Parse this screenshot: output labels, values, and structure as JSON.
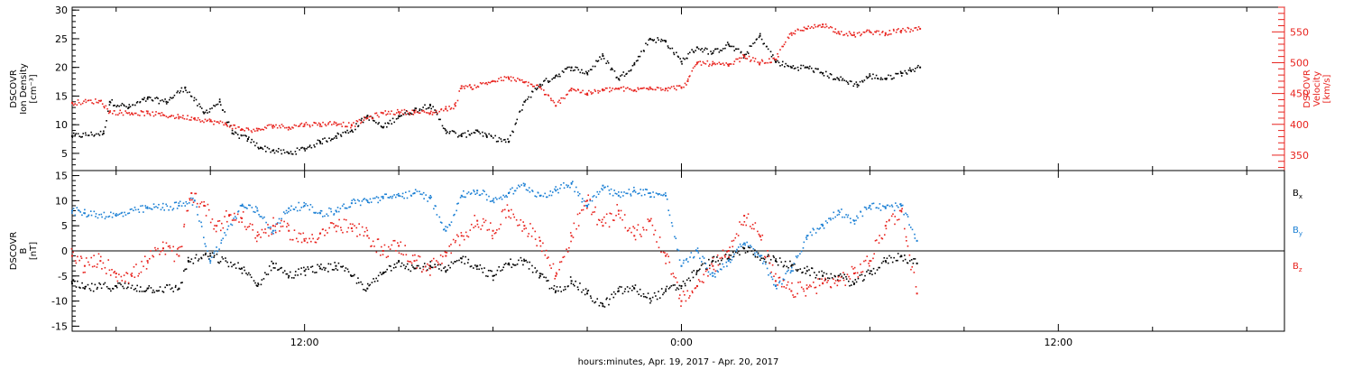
{
  "chart_data": [
    {
      "type": "scatter",
      "xlabel": "hours:minutes, Apr. 19, 2017 - Apr. 20, 2017",
      "x_ticks": [
        "12:00",
        "0:00",
        "12:00"
      ],
      "x_tick_hours": [
        12,
        24,
        36
      ],
      "xlim_hours": [
        4.6,
        43.2
      ],
      "y_left": {
        "label_lines": [
          "DSCOVR",
          "Ion Density",
          "[cm⁻³]"
        ],
        "ylim": [
          2,
          30.5
        ],
        "ticks": [
          5,
          10,
          15,
          20,
          25,
          30
        ],
        "color": "#000000"
      },
      "y_right": {
        "label_lines": [
          "DSCOVR",
          "Velocity",
          "[km/s]"
        ],
        "ylim": [
          325,
          590
        ],
        "ticks": [
          350,
          400,
          450,
          500,
          550
        ],
        "color": "#e8221d"
      },
      "series": [
        {
          "axis": "left",
          "color": "#000000",
          "noise": 0.5,
          "x": [
            4.6,
            5.6,
            5.8,
            6.4,
            7.0,
            7.6,
            8.2,
            8.8,
            9.3,
            9.7,
            10.2,
            10.6,
            11.0,
            11.5,
            12.0,
            12.5,
            13.0,
            13.5,
            14.0,
            14.5,
            15.0,
            15.5,
            16.0,
            16.5,
            17.0,
            17.5,
            17.8,
            18.5,
            19.0,
            19.5,
            20.0,
            20.5,
            21.0,
            21.5,
            22.0,
            22.5,
            23.0,
            23.5,
            24.0,
            24.5,
            25.0,
            25.5,
            26.0,
            26.5,
            27.0,
            27.5,
            28.0,
            28.5,
            29.0,
            29.6,
            30.0,
            30.5,
            31.0,
            31.3,
            31.6
          ],
          "y": [
            8.0,
            8.5,
            14.0,
            13.0,
            14.5,
            14.0,
            16.5,
            12.0,
            14.0,
            8.5,
            7.5,
            6.0,
            5.5,
            5.0,
            5.8,
            7.0,
            8.0,
            9.0,
            11.5,
            9.5,
            11.5,
            12.5,
            13.5,
            9.0,
            8.0,
            9.0,
            8.0,
            7.0,
            14.0,
            17.0,
            18.5,
            20.0,
            19.0,
            22.0,
            18.0,
            20.5,
            25.0,
            24.5,
            21.0,
            23.5,
            22.5,
            24.0,
            22.0,
            25.5,
            21.0,
            20.0,
            20.0,
            19.0,
            18.0,
            17.0,
            18.5,
            18.0,
            19.0,
            19.5,
            20.0
          ]
        },
        {
          "axis": "right",
          "color": "#e8221d",
          "noise": 4,
          "x": [
            4.6,
            5.5,
            5.8,
            6.5,
            7.0,
            7.5,
            8.0,
            8.5,
            9.0,
            9.5,
            10.0,
            10.5,
            11.0,
            11.5,
            12.0,
            12.5,
            13.0,
            13.5,
            14.0,
            14.5,
            15.0,
            15.5,
            16.0,
            16.5,
            16.8,
            17.0,
            17.3,
            18.0,
            18.5,
            19.0,
            19.5,
            20.0,
            20.5,
            21.0,
            21.5,
            22.0,
            22.5,
            23.0,
            23.5,
            24.0,
            24.2,
            24.5,
            25.0,
            25.5,
            26.0,
            26.5,
            27.0,
            27.5,
            28.0,
            28.5,
            29.0,
            29.5,
            30.0,
            30.5,
            31.0,
            31.6
          ],
          "y": [
            435,
            438,
            420,
            418,
            418,
            415,
            412,
            410,
            405,
            400,
            392,
            390,
            398,
            395,
            400,
            400,
            402,
            398,
            410,
            418,
            420,
            420,
            418,
            425,
            430,
            462,
            460,
            470,
            475,
            468,
            460,
            430,
            458,
            450,
            455,
            458,
            455,
            460,
            458,
            460,
            470,
            500,
            498,
            495,
            510,
            500,
            505,
            548,
            555,
            562,
            550,
            545,
            550,
            548,
            552,
            555
          ]
        }
      ]
    },
    {
      "type": "scatter",
      "xlabel": "hours:minutes, Apr. 19, 2017 - Apr. 20, 2017",
      "x_ticks": [
        "12:00",
        "0:00",
        "12:00"
      ],
      "x_tick_hours": [
        12,
        24,
        36
      ],
      "xlim_hours": [
        4.6,
        43.2
      ],
      "y_left": {
        "label_lines": [
          "DSCOVR",
          "B",
          "[nT]"
        ],
        "ylim": [
          -16,
          16
        ],
        "ticks": [
          -15,
          -10,
          -5,
          0,
          5,
          10,
          15
        ],
        "color": "#000000"
      },
      "zero_line": true,
      "legend": {
        "placement": "right",
        "items": [
          {
            "text": "B",
            "sub": "x",
            "color": "#000000"
          },
          {
            "text": "B",
            "sub": "y",
            "color": "#1a7fd4"
          },
          {
            "text": "B",
            "sub": "z",
            "color": "#e8221d"
          }
        ]
      },
      "series": [
        {
          "name": "Bx",
          "color": "#000000",
          "noise": 0.9,
          "x": [
            4.6,
            5.0,
            6.0,
            7.0,
            8.0,
            8.3,
            9.0,
            10.0,
            10.5,
            11.0,
            11.5,
            12.0,
            12.5,
            13.0,
            13.5,
            14.0,
            14.5,
            15.0,
            15.5,
            16.0,
            16.5,
            17.0,
            17.5,
            18.0,
            18.5,
            19.0,
            19.5,
            20.0,
            20.5,
            21.0,
            21.5,
            22.0,
            22.5,
            23.0,
            23.5,
            24.0,
            24.5,
            25.0,
            25.5,
            26.0,
            26.5,
            27.0,
            27.5,
            28.0,
            28.5,
            29.0,
            29.5,
            30.0,
            30.5,
            31.0,
            31.5
          ],
          "y": [
            -6.5,
            -7.5,
            -7.0,
            -7.5,
            -7.5,
            -2.0,
            -1.0,
            -3.5,
            -7.0,
            -2.5,
            -5.0,
            -4.0,
            -3.5,
            -3.0,
            -5.0,
            -7.5,
            -4.5,
            -2.0,
            -3.5,
            -3.0,
            -4.0,
            -1.5,
            -3.0,
            -5.0,
            -2.5,
            -2.0,
            -5.0,
            -8.0,
            -6.0,
            -8.5,
            -11.0,
            -8.0,
            -7.5,
            -9.5,
            -8.0,
            -7.0,
            -4.0,
            -2.0,
            -1.5,
            0.5,
            -1.0,
            -2.0,
            -3.0,
            -4.0,
            -5.0,
            -5.0,
            -6.5,
            -4.5,
            -2.0,
            -1.0,
            -2.5
          ]
        },
        {
          "name": "By",
          "color": "#1a7fd4",
          "noise": 0.8,
          "x": [
            4.6,
            5.0,
            6.0,
            7.0,
            8.0,
            8.5,
            9.0,
            10.0,
            10.5,
            11.0,
            11.5,
            12.0,
            12.5,
            13.0,
            13.5,
            14.0,
            14.5,
            15.0,
            15.5,
            16.0,
            16.5,
            17.0,
            17.5,
            18.0,
            18.5,
            19.0,
            19.5,
            20.0,
            20.5,
            21.0,
            21.5,
            22.0,
            22.5,
            23.0,
            23.5,
            24.0,
            24.5,
            25.0,
            25.5,
            26.0,
            26.5,
            27.0,
            27.5,
            28.0,
            28.5,
            29.0,
            29.5,
            30.0,
            30.5,
            31.0,
            31.5
          ],
          "y": [
            8.0,
            7.5,
            7.0,
            8.5,
            9.0,
            10.0,
            -2.0,
            9.0,
            8.0,
            4.0,
            8.5,
            9.0,
            7.5,
            8.0,
            9.5,
            10.0,
            10.5,
            11.0,
            11.5,
            10.5,
            4.0,
            11.0,
            12.0,
            10.0,
            11.5,
            13.0,
            11.0,
            12.0,
            13.5,
            9.0,
            13.0,
            11.0,
            12.0,
            11.5,
            11.0,
            -3.0,
            0.0,
            -5.0,
            -2.0,
            1.5,
            -1.0,
            -7.0,
            -4.0,
            3.0,
            5.0,
            8.0,
            6.0,
            9.0,
            8.5,
            9.0,
            2.0
          ]
        },
        {
          "name": "Bz",
          "color": "#e8221d",
          "noise": 1.6,
          "x": [
            4.6,
            5.0,
            5.5,
            6.0,
            6.5,
            7.0,
            7.5,
            8.0,
            8.4,
            8.8,
            9.2,
            9.6,
            10.0,
            10.5,
            11.0,
            11.5,
            12.0,
            12.5,
            13.0,
            13.5,
            14.0,
            14.5,
            15.0,
            15.5,
            16.0,
            16.5,
            17.0,
            17.5,
            18.0,
            18.5,
            19.0,
            19.5,
            20.0,
            20.5,
            21.0,
            21.5,
            22.0,
            22.5,
            23.0,
            23.5,
            24.0,
            24.5,
            25.0,
            25.5,
            26.0,
            26.5,
            27.0,
            27.5,
            28.0,
            28.5,
            29.0,
            29.5,
            30.0,
            30.5,
            31.0,
            31.5
          ],
          "y": [
            -1.0,
            -3.0,
            -2.0,
            -4.5,
            -5.0,
            -2.0,
            0.5,
            -1.0,
            11.5,
            9.0,
            5.0,
            7.0,
            6.5,
            3.0,
            5.0,
            4.0,
            2.0,
            3.5,
            5.0,
            4.5,
            3.0,
            0.0,
            1.0,
            -2.0,
            -3.5,
            -1.0,
            3.0,
            6.0,
            4.0,
            8.0,
            5.0,
            2.0,
            -5.0,
            3.0,
            10.0,
            5.0,
            8.0,
            3.0,
            6.0,
            -1.0,
            -10.0,
            -7.0,
            -3.0,
            0.0,
            7.0,
            3.0,
            -6.0,
            -8.0,
            -7.5,
            -6.5,
            -6.0,
            -4.5,
            -2.0,
            5.0,
            8.0,
            -8.5
          ]
        }
      ]
    }
  ]
}
